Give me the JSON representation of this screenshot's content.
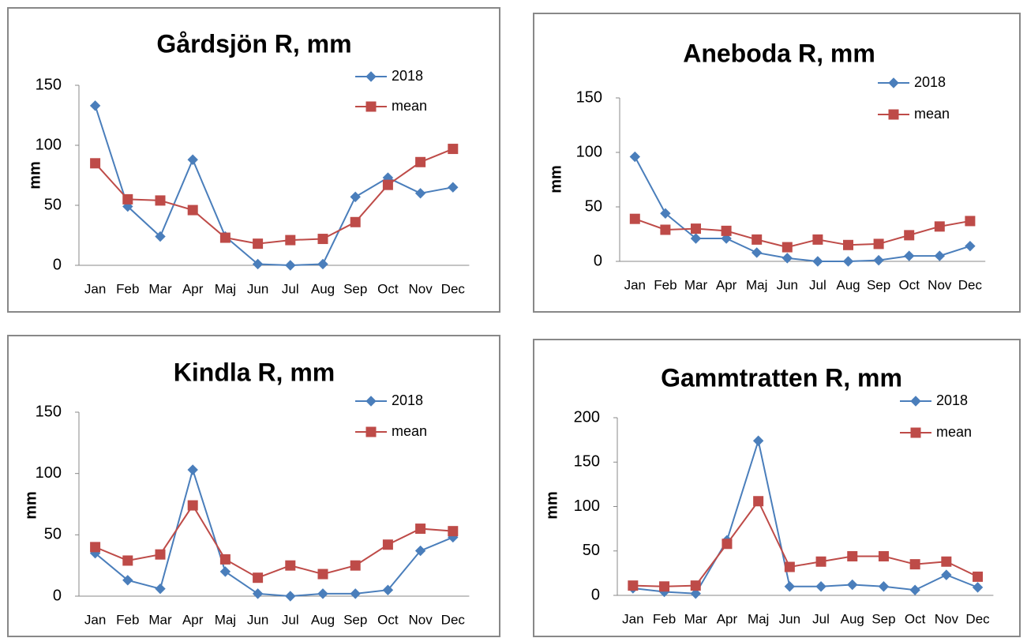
{
  "chart_data": [
    {
      "type": "line",
      "title": "Gårdsjön R, mm",
      "y_label": "mm",
      "categories": [
        "Jan",
        "Feb",
        "Mar",
        "Apr",
        "Maj",
        "Jun",
        "Jul",
        "Aug",
        "Sep",
        "Oct",
        "Nov",
        "Dec"
      ],
      "series": [
        {
          "name": "2018",
          "color": "#4a7ebb",
          "marker": "diamond",
          "values": [
            133,
            49,
            24,
            88,
            24,
            1,
            0,
            1,
            57,
            73,
            60,
            65
          ]
        },
        {
          "name": "mean",
          "color": "#be4b48",
          "marker": "square",
          "values": [
            85,
            55,
            54,
            46,
            23,
            18,
            21,
            22,
            36,
            67,
            86,
            97
          ]
        }
      ],
      "ylim": [
        0,
        150
      ],
      "yticks": [
        0,
        50,
        100,
        150
      ]
    },
    {
      "type": "line",
      "title": "Aneboda R, mm",
      "y_label": "mm",
      "categories": [
        "Jan",
        "Feb",
        "Mar",
        "Apr",
        "Maj",
        "Jun",
        "Jul",
        "Aug",
        "Sep",
        "Oct",
        "Nov",
        "Dec"
      ],
      "series": [
        {
          "name": "2018",
          "color": "#4a7ebb",
          "marker": "diamond",
          "values": [
            96,
            44,
            21,
            21,
            8,
            3,
            0,
            0,
            1,
            5,
            5,
            14
          ]
        },
        {
          "name": "mean",
          "color": "#be4b48",
          "marker": "square",
          "values": [
            39,
            29,
            30,
            28,
            20,
            13,
            20,
            15,
            16,
            24,
            32,
            37
          ]
        }
      ],
      "ylim": [
        0,
        150
      ],
      "yticks": [
        0,
        50,
        100,
        150
      ]
    },
    {
      "type": "line",
      "title": "Kindla R, mm",
      "y_label": "mm",
      "categories": [
        "Jan",
        "Feb",
        "Mar",
        "Apr",
        "Maj",
        "Jun",
        "Jul",
        "Aug",
        "Sep",
        "Oct",
        "Nov",
        "Dec"
      ],
      "series": [
        {
          "name": "2018",
          "color": "#4a7ebb",
          "marker": "diamond",
          "values": [
            35,
            13,
            6,
            103,
            20,
            2,
            0,
            2,
            2,
            5,
            37,
            48
          ]
        },
        {
          "name": "mean",
          "color": "#be4b48",
          "marker": "square",
          "values": [
            40,
            29,
            34,
            74,
            30,
            15,
            25,
            18,
            25,
            42,
            55,
            53
          ]
        }
      ],
      "ylim": [
        0,
        150
      ],
      "yticks": [
        0,
        50,
        100,
        150
      ]
    },
    {
      "type": "line",
      "title": "Gammtratten R, mm",
      "y_label": "mm",
      "categories": [
        "Jan",
        "Feb",
        "Mar",
        "Apr",
        "Maj",
        "Jun",
        "Jul",
        "Aug",
        "Sep",
        "Oct",
        "Nov",
        "Dec"
      ],
      "series": [
        {
          "name": "2018",
          "color": "#4a7ebb",
          "marker": "diamond",
          "values": [
            8,
            4,
            2,
            62,
            174,
            10,
            10,
            12,
            10,
            6,
            23,
            9
          ]
        },
        {
          "name": "mean",
          "color": "#be4b48",
          "marker": "square",
          "values": [
            11,
            10,
            11,
            58,
            106,
            32,
            38,
            44,
            44,
            35,
            38,
            21
          ]
        }
      ],
      "ylim": [
        0,
        200
      ],
      "yticks": [
        0,
        50,
        100,
        150,
        200
      ]
    }
  ]
}
